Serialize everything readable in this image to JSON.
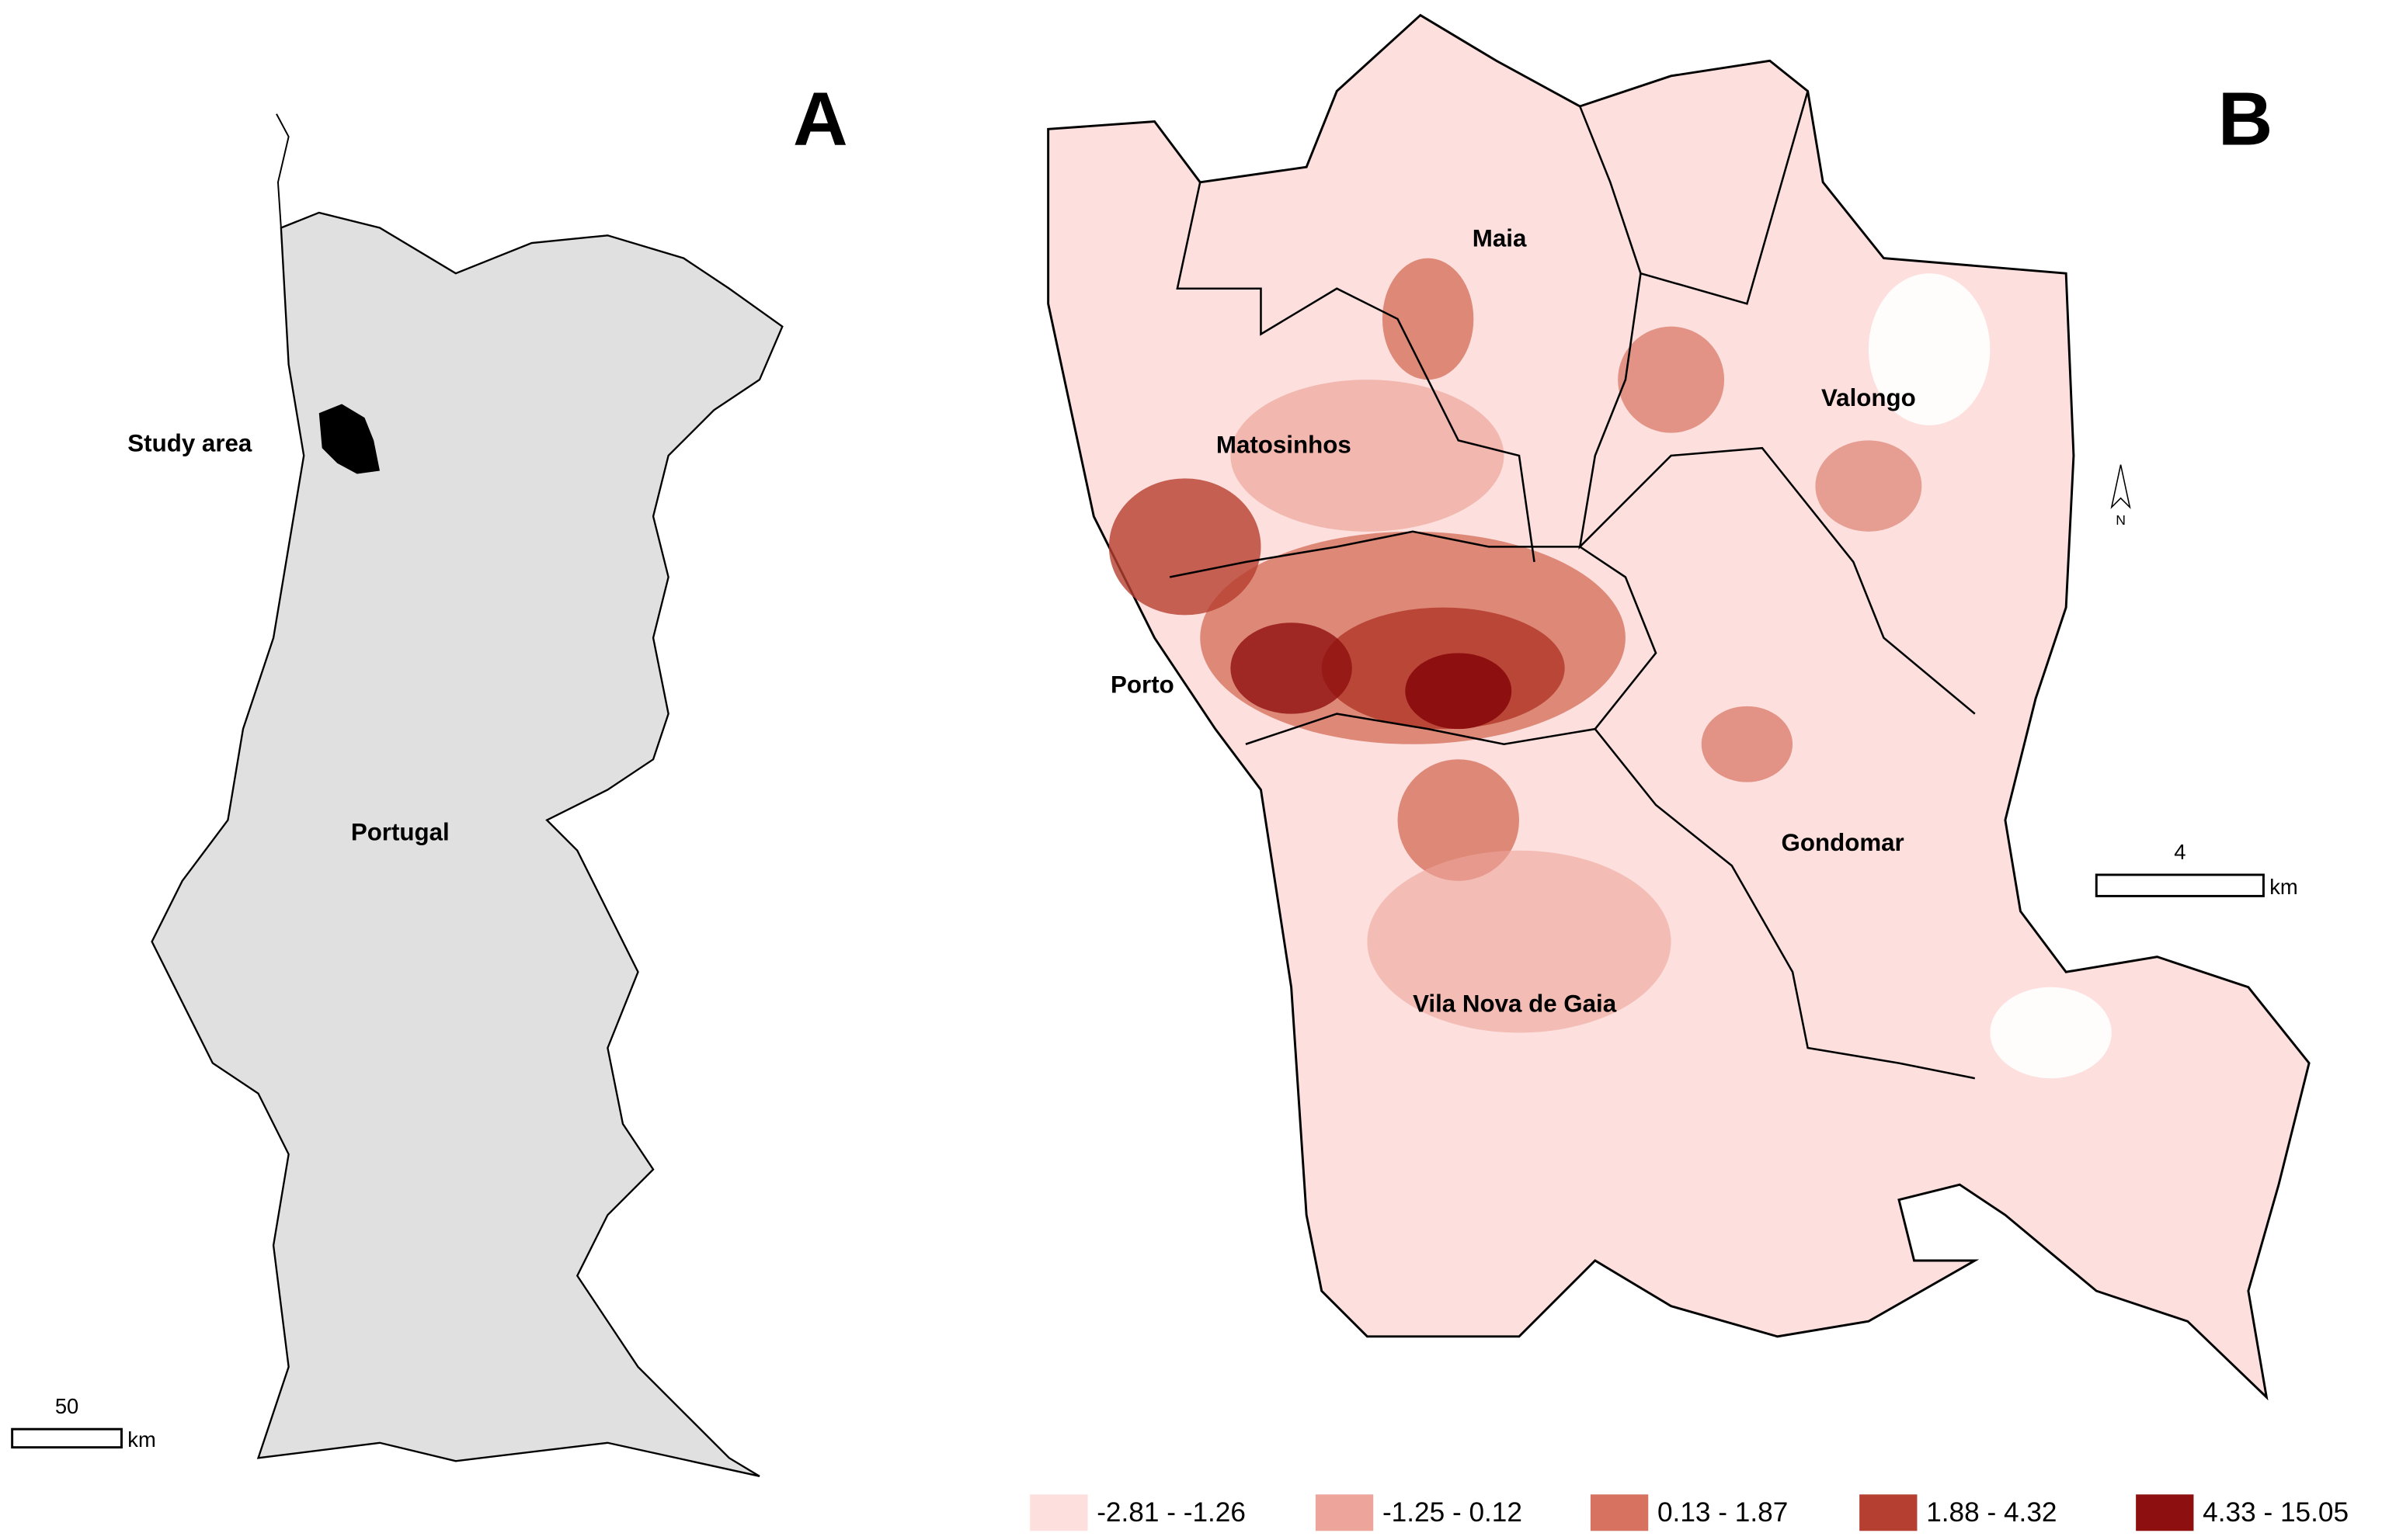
{
  "panel_a": {
    "label": "A",
    "study_area": "Study area",
    "country": "Portugal",
    "scale_value": "50",
    "scale_unit": "km"
  },
  "panel_b": {
    "label": "B",
    "places": [
      "Maia",
      "Valongo",
      "Matosinhos",
      "Porto",
      "Gondomar",
      "Vila Nova de Gaia"
    ],
    "north": "N",
    "scale_value": "4",
    "scale_unit": "km"
  },
  "legend": {
    "items": [
      {
        "label": "-2.81 - -1.26",
        "color": "#fde0dd"
      },
      {
        "label": "-1.25 - 0.12",
        "color": "#eda59b"
      },
      {
        "label": "0.13 - 1.87",
        "color": "#d6725f"
      },
      {
        "label": "1.88 - 4.32",
        "color": "#b53f30"
      },
      {
        "label": "4.33 - 15.05",
        "color": "#8e0f0f"
      }
    ]
  }
}
